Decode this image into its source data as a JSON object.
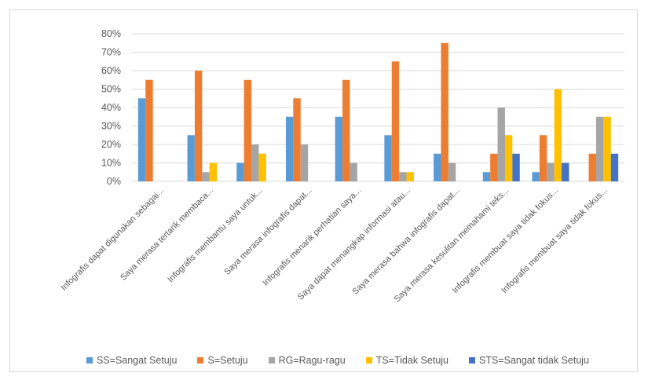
{
  "chart_data": {
    "type": "bar",
    "title": "",
    "xlabel": "",
    "ylabel": "",
    "ylim": [
      0,
      0.8
    ],
    "yticks": [
      "0%",
      "10%",
      "20%",
      "30%",
      "40%",
      "50%",
      "60%",
      "70%",
      "80%"
    ],
    "grid": true,
    "legend_position": "bottom",
    "categories": [
      "Infografis dapat digunakan sebagai...",
      "Saya merasa tertarik membaca...",
      "Infografis membantu saya untuk...",
      "Saya merasa infografis dapat...",
      "Infografis menarik perhatian saya...",
      "Saya dapat menangkap informasi atau...",
      "Saya merasa bahwa infografis dapat...",
      "Saya merasa kesulitan memahami teks...",
      "Infografis membuat saya tidak fokus...",
      "Infografis membuat saya tidak fokus..."
    ],
    "series": [
      {
        "name": "SS=Sangat Setuju",
        "color": "#5b9bd5",
        "values": [
          0.45,
          0.25,
          0.1,
          0.35,
          0.35,
          0.25,
          0.15,
          0.05,
          0.05,
          0.0
        ]
      },
      {
        "name": "S=Setuju",
        "color": "#ed7d31",
        "values": [
          0.55,
          0.6,
          0.55,
          0.45,
          0.55,
          0.65,
          0.75,
          0.15,
          0.25,
          0.15
        ]
      },
      {
        "name": "RG=Ragu-ragu",
        "color": "#a5a5a5",
        "values": [
          0.0,
          0.05,
          0.2,
          0.2,
          0.1,
          0.05,
          0.1,
          0.4,
          0.1,
          0.35
        ]
      },
      {
        "name": "TS=Tidak Setuju",
        "color": "#ffc000",
        "values": [
          0.0,
          0.1,
          0.15,
          0.0,
          0.0,
          0.05,
          0.0,
          0.25,
          0.5,
          0.35
        ]
      },
      {
        "name": "STS=Sangat tidak Setuju",
        "color": "#4472c4",
        "values": [
          0.0,
          0.0,
          0.0,
          0.0,
          0.0,
          0.0,
          0.0,
          0.15,
          0.1,
          0.15
        ]
      }
    ]
  }
}
